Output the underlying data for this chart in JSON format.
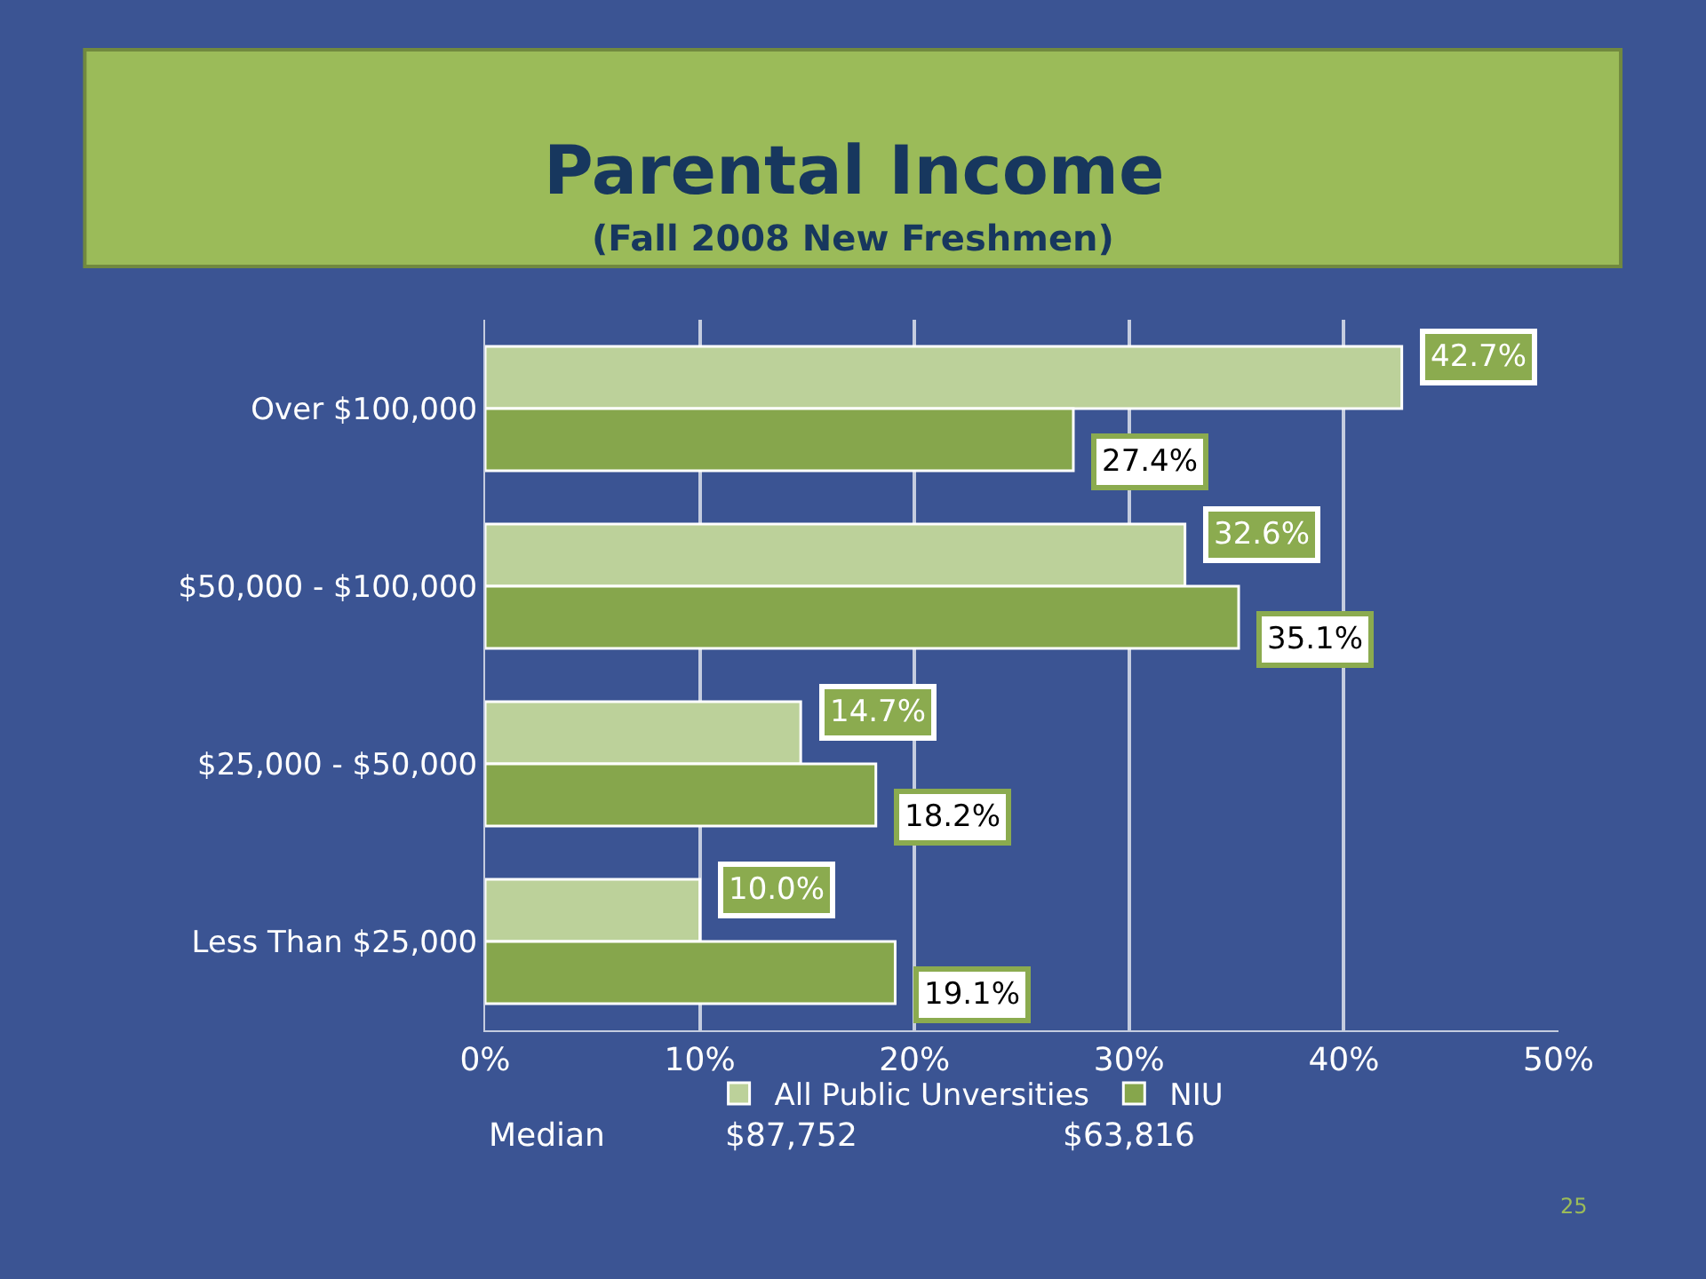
{
  "chart_data": {
    "type": "bar",
    "orientation": "horizontal",
    "title": "Parental Income",
    "subtitle": "(Fall 2008 New Freshmen)",
    "categories": [
      "Over $100,000",
      "$50,000 - $100,000",
      "$25,000 - $50,000",
      "Less Than $25,000"
    ],
    "series": [
      {
        "name": "All Public Unversities",
        "color": "#bcd19a",
        "values": [
          42.7,
          32.6,
          14.7,
          10.0
        ],
        "value_labels": [
          "42.7%",
          "32.6%",
          "14.7%",
          "10.0%"
        ]
      },
      {
        "name": "NIU",
        "color": "#86a64c",
        "values": [
          27.4,
          35.1,
          18.2,
          19.1
        ],
        "value_labels": [
          "27.4%",
          "35.1%",
          "18.2%",
          "19.1%"
        ]
      }
    ],
    "xlim": [
      0,
      50
    ],
    "xticks": [
      {
        "value": 0,
        "label": "0%"
      },
      {
        "value": 10,
        "label": "10%"
      },
      {
        "value": 20,
        "label": "20%"
      },
      {
        "value": 30,
        "label": "30%"
      },
      {
        "value": 40,
        "label": "40%"
      },
      {
        "value": 50,
        "label": "50%"
      }
    ],
    "grid": "x",
    "legend": "bottom",
    "annotations": [
      "Median",
      "$87,752",
      "$63,816",
      "25"
    ]
  }
}
